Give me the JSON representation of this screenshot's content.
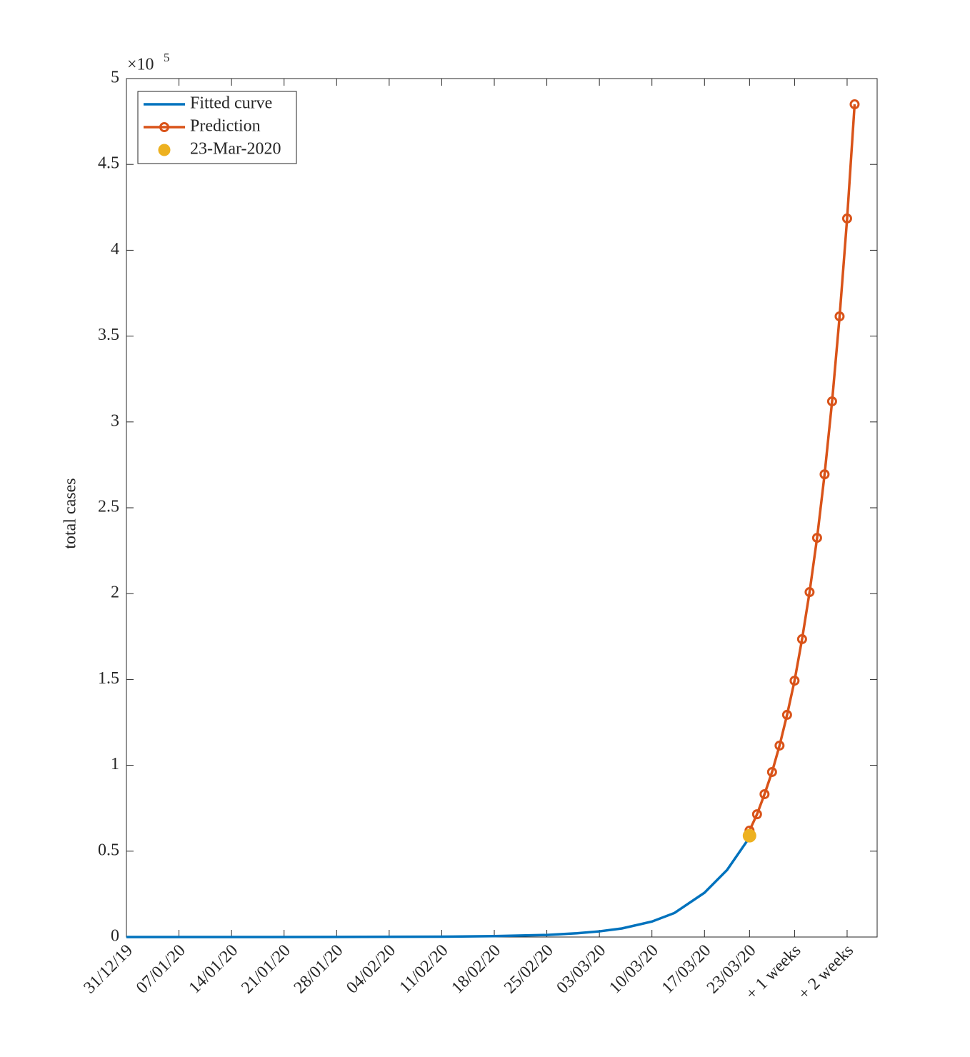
{
  "chart_data": {
    "type": "line",
    "ylabel": "total cases",
    "y_scale_label": "×10",
    "y_scale_exponent": "5",
    "xlim": [
      0,
      100
    ],
    "xticks": [
      {
        "value": 0,
        "label": "31/12/19"
      },
      {
        "value": 7,
        "label": "07/01/20"
      },
      {
        "value": 14,
        "label": "14/01/20"
      },
      {
        "value": 21,
        "label": "21/01/20"
      },
      {
        "value": 28,
        "label": "28/01/20"
      },
      {
        "value": 35,
        "label": "04/02/20"
      },
      {
        "value": 42,
        "label": "11/02/20"
      },
      {
        "value": 49,
        "label": "18/02/20"
      },
      {
        "value": 56,
        "label": "25/02/20"
      },
      {
        "value": 63,
        "label": "03/03/20"
      },
      {
        "value": 70,
        "label": "10/03/20"
      },
      {
        "value": 77,
        "label": "17/03/20"
      },
      {
        "value": 83,
        "label": "23/03/20"
      },
      {
        "value": 89,
        "label": "+ 1 weeks"
      },
      {
        "value": 96,
        "label": "+ 2 weeks"
      }
    ],
    "ylim": [
      0,
      5
    ],
    "yticks": [
      0,
      0.5,
      1,
      1.5,
      2,
      2.5,
      3,
      3.5,
      4,
      4.5,
      5
    ],
    "legend": "upper left",
    "series": [
      {
        "name": "Fitted curve",
        "color": "#0072BD",
        "marker": "none",
        "x": [
          0,
          14,
          28,
          42,
          49,
          56,
          60,
          63,
          66,
          70,
          73,
          77,
          80,
          83
        ],
        "values": [
          0,
          0.0001,
          0.0005,
          0.002,
          0.005,
          0.012,
          0.022,
          0.033,
          0.05,
          0.09,
          0.14,
          0.258,
          0.39,
          0.58
        ]
      },
      {
        "name": "Prediction",
        "color": "#D95319",
        "marker": "circle",
        "x": [
          83,
          84,
          85,
          86,
          87,
          88,
          89,
          90,
          91,
          92,
          93,
          94,
          95,
          96,
          97
        ],
        "values": [
          0.62,
          0.715,
          0.832,
          0.961,
          1.115,
          1.294,
          1.493,
          1.735,
          2.009,
          2.325,
          2.695,
          3.12,
          3.615,
          4.185,
          4.85
        ]
      },
      {
        "name": "23-Mar-2020",
        "color": "#EDB120",
        "marker": "dot",
        "line": false,
        "x": [
          83
        ],
        "values": [
          0.59
        ]
      }
    ]
  }
}
